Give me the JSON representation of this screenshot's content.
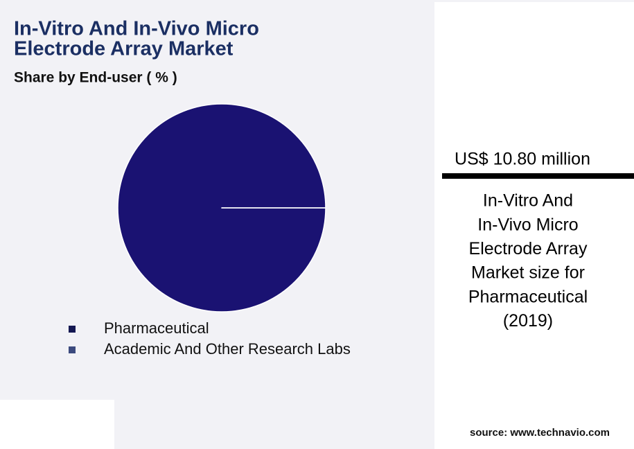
{
  "chart_data": {
    "type": "pie",
    "title": [
      "In-Vitro And In-Vivo Micro",
      "Electrode Array Market"
    ],
    "subtitle": "Share by End-user ( % )",
    "categories": [
      "Pharmaceutical",
      "Academic And Other Research Labs"
    ],
    "values": [
      100,
      0
    ],
    "colors": [
      "#1a1272",
      "#3c4a7e"
    ]
  },
  "side_panel": {
    "headline": "US$ 10.80 million",
    "description": [
      "In-Vitro And",
      "In-Vivo Micro",
      "Electrode Array",
      "Market size for",
      "Pharmaceutical",
      "(2019)"
    ],
    "source": "source: www.technavio.com"
  }
}
